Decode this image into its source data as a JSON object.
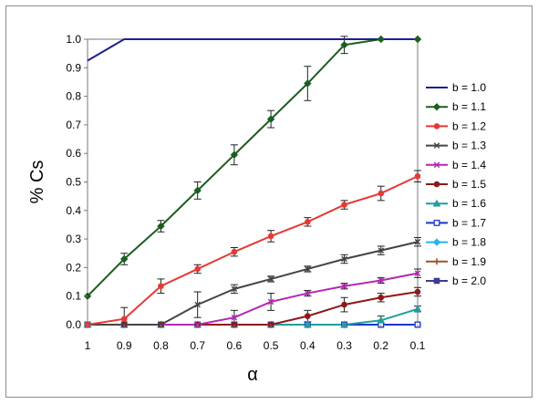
{
  "chart_data": {
    "type": "line",
    "xlabel": "α",
    "ylabel": "% Cs",
    "x": [
      1,
      0.9,
      0.8,
      0.7,
      0.6,
      0.5,
      0.4,
      0.3,
      0.2,
      0.1
    ],
    "x_tick_labels": [
      "1",
      "0.9",
      "0.8",
      "0.7",
      "0.6",
      "0.5",
      "0.4",
      "0.3",
      "0.2",
      "0.1"
    ],
    "x_reversed": true,
    "ylim": [
      0,
      1
    ],
    "y_tick_labels": [
      "0.0",
      "0.1",
      "0.2",
      "0.3",
      "0.4",
      "0.5",
      "0.6",
      "0.7",
      "0.8",
      "0.9",
      "1.0"
    ],
    "legend_position": "right",
    "grid": false,
    "series": [
      {
        "name": "b = 1.0",
        "color": "#1f1f8f",
        "marker": "none",
        "x": [
          1.02,
          0.9,
          0.8,
          0.7,
          0.6,
          0.5,
          0.4,
          0.3,
          0.2,
          0.1
        ],
        "values": [
          0.925,
          1.0,
          1.0,
          1.0,
          1.0,
          1.0,
          1.0,
          1.0,
          1.0,
          1.0
        ],
        "errors": [
          0,
          0,
          0,
          0,
          0,
          0,
          0,
          0,
          0,
          0
        ]
      },
      {
        "name": "b = 1.1",
        "color": "#1b5e20",
        "marker": "diamond",
        "values": [
          0.1,
          0.23,
          0.345,
          0.47,
          0.595,
          0.72,
          0.845,
          0.98,
          1.0,
          1.0
        ],
        "errors": [
          0,
          0.02,
          0.02,
          0.03,
          0.035,
          0.03,
          0.06,
          0.03,
          0,
          0
        ]
      },
      {
        "name": "b = 1.2",
        "color": "#e53935",
        "marker": "circle",
        "values": [
          0,
          0.02,
          0.135,
          0.195,
          0.255,
          0.31,
          0.36,
          0.42,
          0.46,
          0.52
        ],
        "errors": [
          0,
          0.04,
          0.025,
          0.015,
          0.015,
          0.02,
          0.015,
          0.015,
          0.025,
          0.02
        ]
      },
      {
        "name": "b = 1.3",
        "color": "#444444",
        "marker": "x",
        "values": [
          0,
          0,
          0,
          0.07,
          0.125,
          0.16,
          0.195,
          0.23,
          0.26,
          0.29
        ],
        "errors": [
          0,
          0,
          0,
          0.045,
          0.015,
          0.01,
          0.01,
          0.015,
          0.015,
          0.015
        ]
      },
      {
        "name": "b = 1.4",
        "color": "#b427b4",
        "marker": "x",
        "values": [
          0,
          0,
          0,
          0,
          0.025,
          0.08,
          0.11,
          0.135,
          0.155,
          0.18
        ],
        "errors": [
          0,
          0,
          0,
          0,
          0.025,
          0.03,
          0.01,
          0.01,
          0.01,
          0.015
        ]
      },
      {
        "name": "b = 1.5",
        "color": "#8b1a1a",
        "marker": "circle",
        "values": [
          0,
          0,
          0,
          0,
          0,
          0,
          0.03,
          0.07,
          0.095,
          0.115
        ],
        "errors": [
          0,
          0,
          0,
          0,
          0,
          0,
          0.02,
          0.025,
          0.015,
          0.015
        ]
      },
      {
        "name": "b = 1.6",
        "color": "#1e9e9e",
        "marker": "triangle",
        "values": [
          0,
          0,
          0,
          0,
          0,
          0,
          0,
          0,
          0.015,
          0.055
        ],
        "errors": [
          0,
          0,
          0,
          0,
          0,
          0,
          0,
          0,
          0.015,
          0.01
        ]
      },
      {
        "name": "b = 1.7",
        "color": "#1a35c9",
        "marker": "square-open",
        "values": [
          0,
          0,
          0,
          0,
          0,
          0,
          0,
          0,
          0,
          0
        ],
        "errors": [
          0,
          0,
          0,
          0,
          0,
          0,
          0,
          0,
          0,
          0
        ]
      },
      {
        "name": "b = 1.8",
        "color": "#23b6e8",
        "marker": "diamond",
        "values": [
          0,
          0,
          0,
          0,
          0,
          0,
          0,
          0,
          0,
          0
        ],
        "errors": [
          0,
          0,
          0,
          0,
          0,
          0,
          0,
          0,
          0,
          0
        ]
      },
      {
        "name": "b = 1.9",
        "color": "#a0522d",
        "marker": "plus",
        "values": [
          0,
          0,
          0,
          0,
          0,
          0,
          0,
          0,
          0,
          0
        ],
        "errors": [
          0,
          0,
          0,
          0,
          0,
          0,
          0,
          0,
          0,
          0
        ]
      },
      {
        "name": "b = 2.0",
        "color": "#3b3b8f",
        "marker": "square",
        "values": [
          0,
          0,
          0,
          0,
          0,
          0,
          0,
          0,
          0,
          0
        ],
        "errors": [
          0,
          0,
          0,
          0,
          0,
          0,
          0,
          0,
          0,
          0
        ]
      }
    ]
  }
}
